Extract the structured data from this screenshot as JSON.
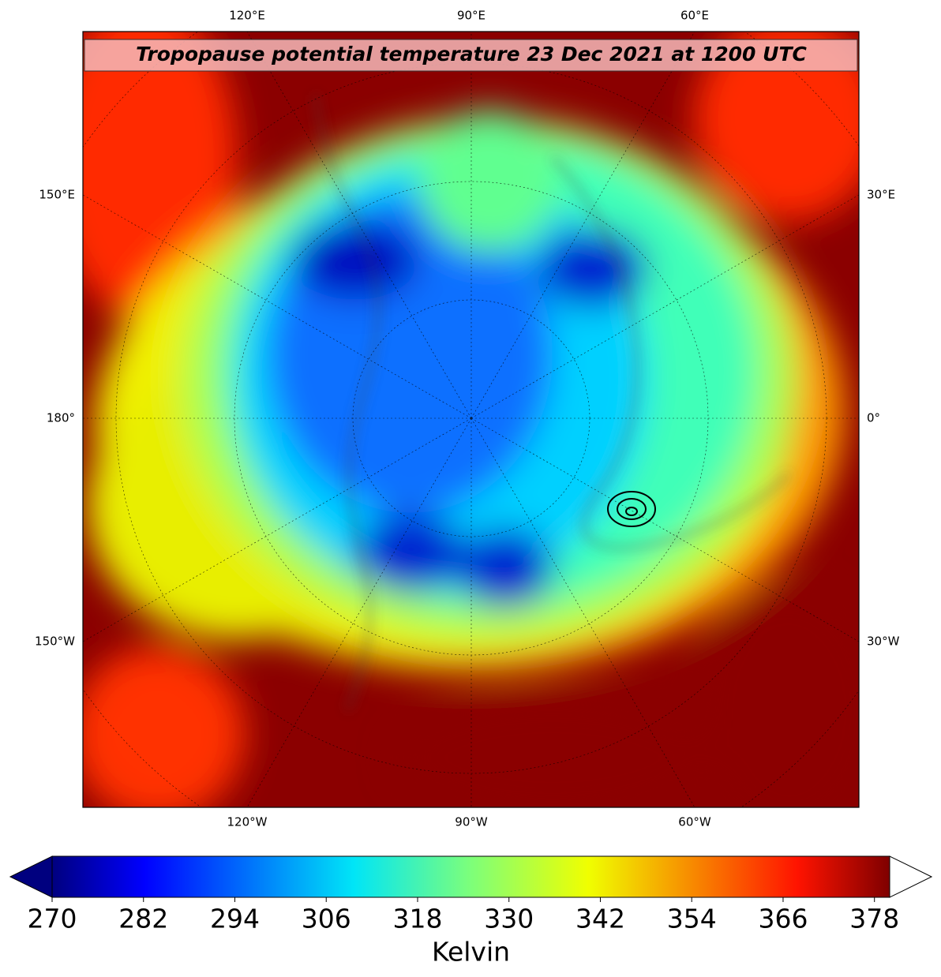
{
  "title": "Tropopause potential temperature 23 Dec 2021 at 1200 UTC",
  "top_labels": [
    "120°E",
    "90°E",
    "60°E"
  ],
  "bottom_labels": [
    "120°W",
    "90°W",
    "60°W"
  ],
  "left_labels": [
    "150°E",
    "180°",
    "150°W"
  ],
  "right_labels": [
    "30°E",
    "0°",
    "30°W"
  ],
  "colorbar": {
    "label": "Kelvin",
    "lim": [
      270,
      380
    ],
    "ticks": [
      270,
      282,
      294,
      306,
      318,
      330,
      342,
      354,
      366,
      378
    ]
  }
}
